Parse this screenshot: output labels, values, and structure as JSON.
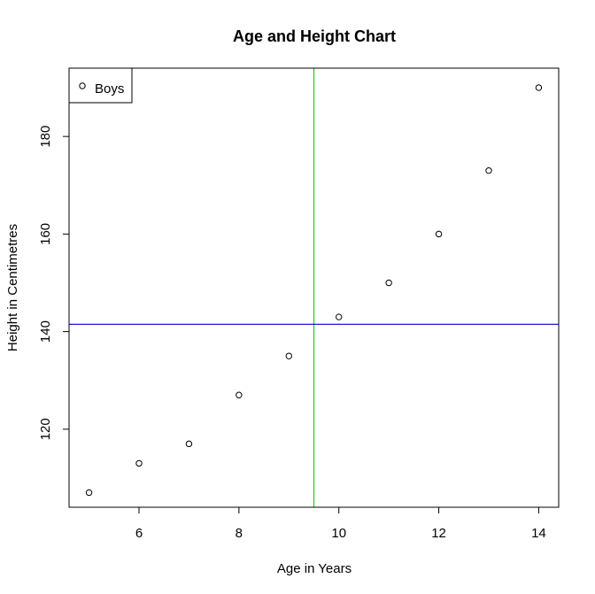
{
  "chart_data": {
    "type": "scatter",
    "title": "Age and Height Chart",
    "xlabel": "Age in Years",
    "ylabel": "Height in Centimetres",
    "xlim": [
      4.6,
      14.4
    ],
    "ylim": [
      104,
      194
    ],
    "x_ticks": [
      6,
      8,
      10,
      12,
      14
    ],
    "y_ticks": [
      120,
      140,
      160,
      180
    ],
    "series": [
      {
        "name": "Boys",
        "x": [
          5,
          6,
          7,
          8,
          9,
          10,
          11,
          12,
          13,
          14
        ],
        "y": [
          107,
          113,
          117,
          127,
          135,
          143,
          150,
          160,
          173,
          190
        ]
      }
    ],
    "reference_lines": [
      {
        "orientation": "vertical",
        "value": 9.5,
        "color": "#22cc22"
      },
      {
        "orientation": "horizontal",
        "value": 141.5,
        "color": "#0000cc"
      }
    ],
    "legend": {
      "placement": "top-left"
    },
    "grid": false
  }
}
